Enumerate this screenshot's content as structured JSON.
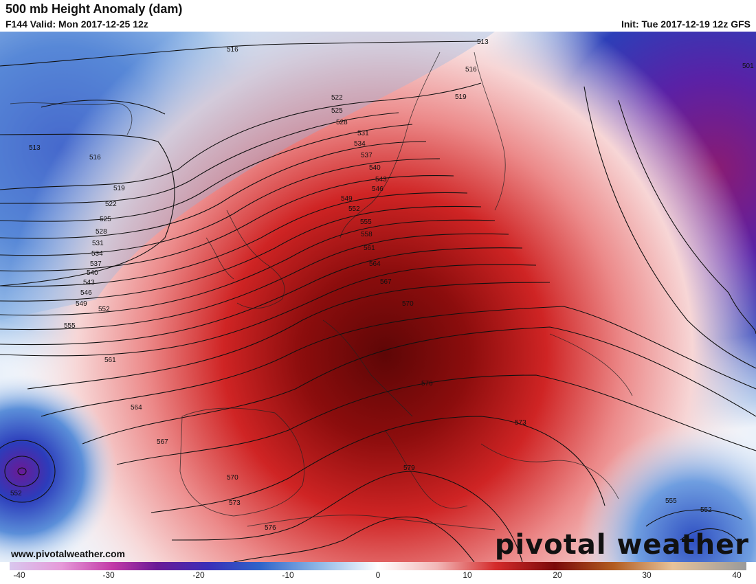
{
  "header": {
    "title": "500 mb Height Anomaly (dam)",
    "valid": "F144 Valid: Mon 2017-12-25 12z",
    "init": "Init: Tue 2017-12-19 12z GFS"
  },
  "footer": {
    "website": "www.pivotalweather.com",
    "brand": "pivotal weather"
  },
  "colorbar": {
    "ticks": [
      "-40",
      "-30",
      "-20",
      "-10",
      "0",
      "10",
      "20",
      "30",
      "40"
    ],
    "min": -40,
    "max": 40
  },
  "contours": {
    "labels": [
      "513",
      "516",
      "519",
      "522",
      "525",
      "528",
      "531",
      "534",
      "537",
      "540",
      "543",
      "546",
      "549",
      "552",
      "555",
      "558",
      "561",
      "564",
      "567",
      "570",
      "573",
      "576",
      "579",
      "501"
    ]
  },
  "colors": {
    "strong_negative": "#3a1fa0",
    "negative": "#2f64c9",
    "weak_negative": "#9cc3ea",
    "neutral": "#ffffff",
    "weak_positive": "#f2b7b7",
    "positive": "#d42a2a",
    "strong_positive": "#7a0a0a"
  }
}
